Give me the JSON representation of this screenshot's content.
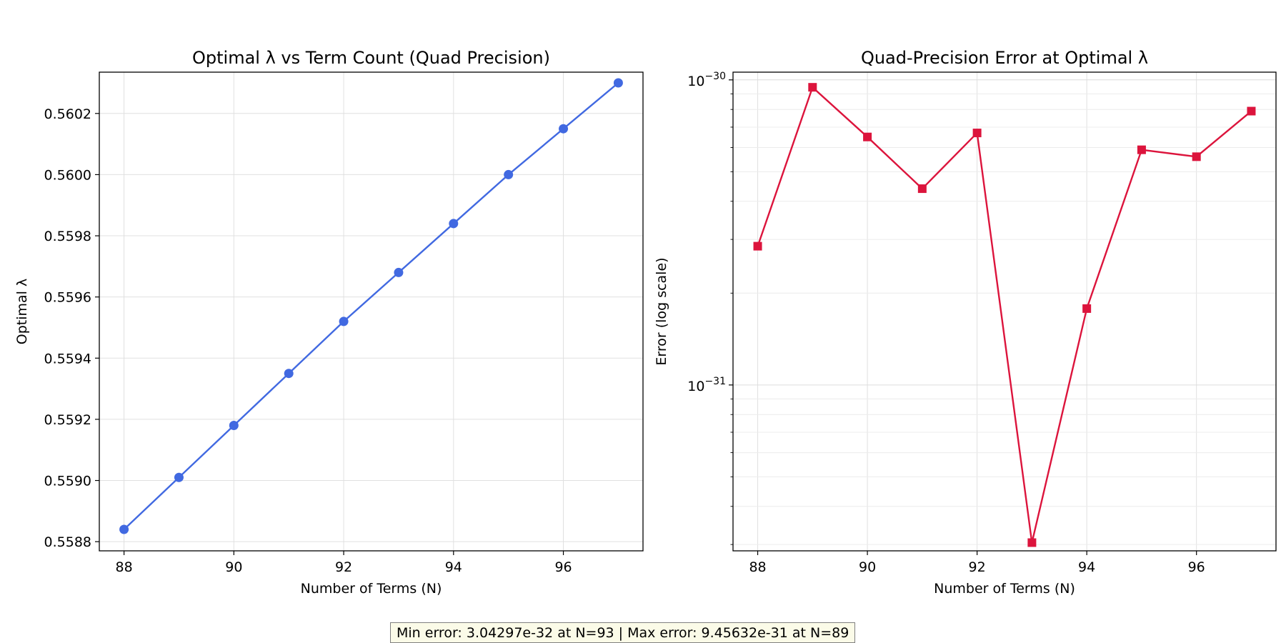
{
  "chart_data": [
    {
      "type": "line",
      "title": "Optimal λ vs Term Count (Quad Precision)",
      "xlabel": "Number of Terms (N)",
      "ylabel": "Optimal λ",
      "x": [
        88,
        89,
        90,
        91,
        92,
        93,
        94,
        95,
        96,
        97
      ],
      "series": [
        {
          "values": [
            0.55884,
            0.55901,
            0.55918,
            0.55935,
            0.55952,
            0.55968,
            0.55984,
            0.56,
            0.56015,
            0.5603
          ],
          "color": "#4169e1",
          "marker": "circle"
        }
      ],
      "xlim": [
        87.55,
        97.45
      ],
      "ylim": [
        0.55877,
        0.560335
      ],
      "xticks": [
        88,
        90,
        92,
        94,
        96
      ],
      "yticks": [
        0.5588,
        0.559,
        0.5592,
        0.5594,
        0.5596,
        0.5598,
        0.56,
        0.5602
      ],
      "ytick_labels": [
        "0.5588",
        "0.5590",
        "0.5592",
        "0.5594",
        "0.5596",
        "0.5598",
        "0.5600",
        "0.5602"
      ],
      "grid": true
    },
    {
      "type": "line",
      "title": "Quad-Precision Error at Optimal λ",
      "xlabel": "Number of Terms (N)",
      "ylabel": "Error (log scale)",
      "yscale": "log",
      "x": [
        88,
        89,
        90,
        91,
        92,
        93,
        94,
        95,
        96,
        97
      ],
      "series": [
        {
          "values": [
            2.85e-31,
            9.45632e-31,
            6.5e-31,
            4.4e-31,
            6.7e-31,
            3.04297e-32,
            1.78e-31,
            5.9e-31,
            5.6e-31,
            7.9e-31
          ],
          "color": "#dc143c",
          "marker": "square"
        }
      ],
      "xlim": [
        87.55,
        97.45
      ],
      "ylim": [
        2.86e-32,
        1.06e-30
      ],
      "xticks": [
        88,
        90,
        92,
        94,
        96
      ],
      "ytick_major": [
        1e-31,
        1e-30
      ],
      "ytick_labels": [
        "10",
        "10"
      ],
      "ytick_exponents": [
        "−31",
        "−30"
      ],
      "grid": true
    }
  ],
  "annotation": "Min error: 3.04297e-32 at N=93 | Max error: 9.45632e-31 at N=89"
}
